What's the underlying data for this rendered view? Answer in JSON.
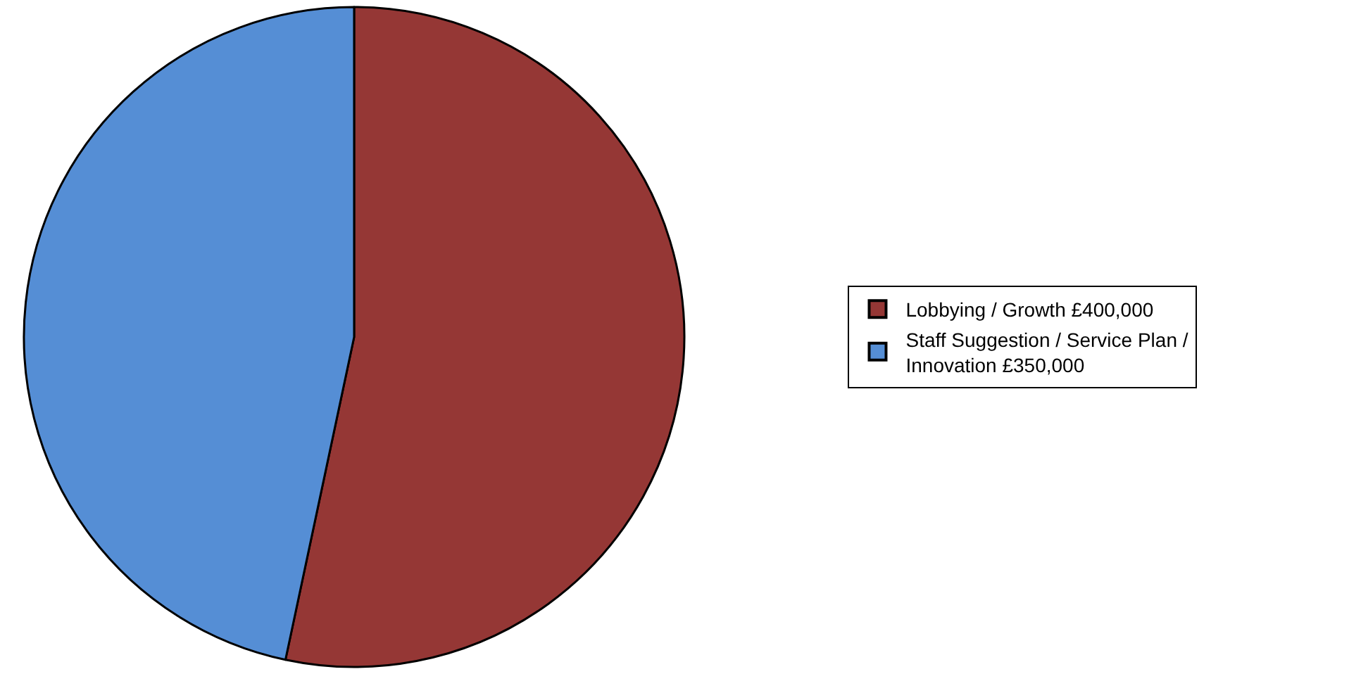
{
  "chart_data": {
    "type": "pie",
    "categories": [
      "Lobbying / Growth £400,000",
      "Staff Suggestion / Service Plan / Innovation £350,000"
    ],
    "values": [
      400000,
      350000
    ],
    "colors": [
      "#953735",
      "#558ed5"
    ],
    "legend": "right"
  }
}
